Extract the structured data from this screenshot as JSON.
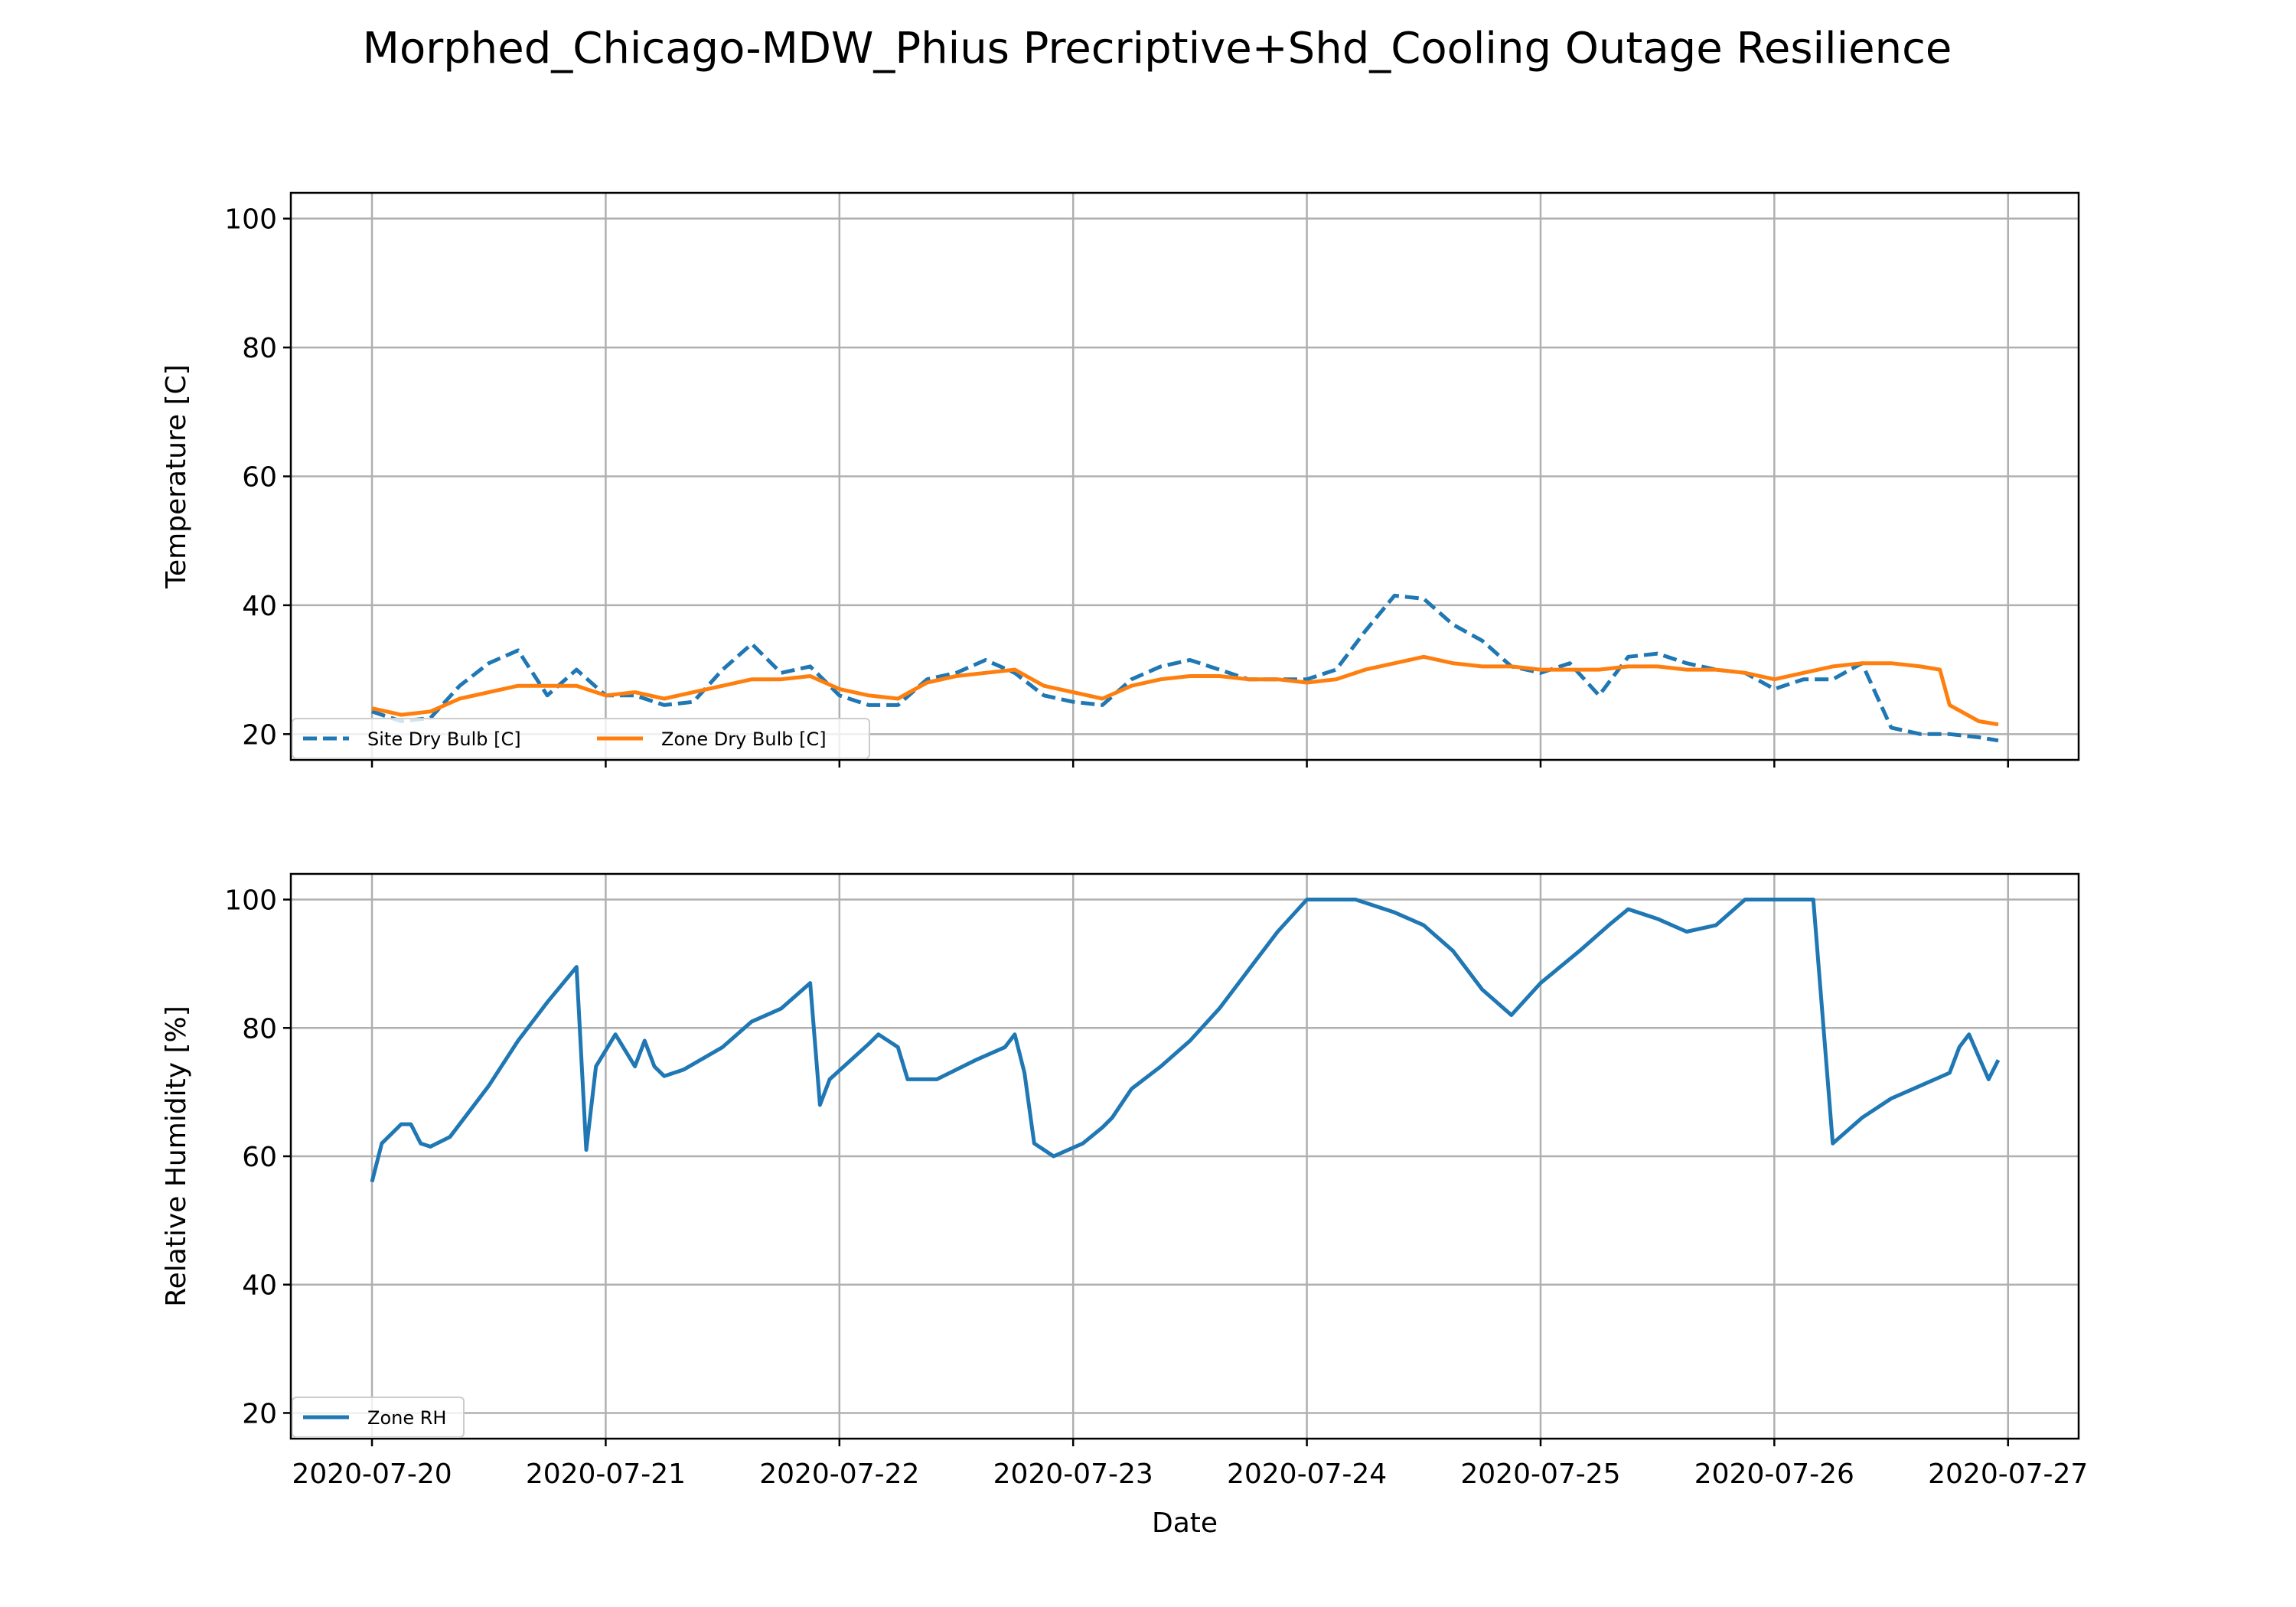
{
  "figure": {
    "title": "Morphed_Chicago-MDW_Phius Precriptive+Shd_Cooling Outage Resilience"
  },
  "chart_data": [
    {
      "type": "line",
      "title": "",
      "xlabel": "",
      "ylabel": "Temperature [C]",
      "ylim": [
        16,
        104
      ],
      "yticks": [
        20,
        40,
        60,
        80,
        100
      ],
      "xlim": [
        "2020-07-19T15:40",
        "2020-07-27T07:15"
      ],
      "xticks": [
        "2020-07-20",
        "2020-07-21",
        "2020-07-22",
        "2020-07-23",
        "2020-07-24",
        "2020-07-25",
        "2020-07-26",
        "2020-07-27"
      ],
      "tick_labels_visible": false,
      "grid": true,
      "legend": {
        "placement": "lower-left",
        "columns": 2
      },
      "series": [
        {
          "name": "Site Dry Bulb [C]",
          "color": "#1f77b4",
          "style": "dashed",
          "x": [
            "2020-07-20T00:00",
            "2020-07-20T03:00",
            "2020-07-20T06:00",
            "2020-07-20T09:00",
            "2020-07-20T12:00",
            "2020-07-20T15:00",
            "2020-07-20T18:00",
            "2020-07-20T21:00",
            "2020-07-21T00:00",
            "2020-07-21T03:00",
            "2020-07-21T06:00",
            "2020-07-21T09:00",
            "2020-07-21T12:00",
            "2020-07-21T15:00",
            "2020-07-21T18:00",
            "2020-07-21T21:00",
            "2020-07-22T00:00",
            "2020-07-22T03:00",
            "2020-07-22T06:00",
            "2020-07-22T09:00",
            "2020-07-22T12:00",
            "2020-07-22T15:00",
            "2020-07-22T18:00",
            "2020-07-22T21:00",
            "2020-07-23T00:00",
            "2020-07-23T03:00",
            "2020-07-23T06:00",
            "2020-07-23T09:00",
            "2020-07-23T12:00",
            "2020-07-23T15:00",
            "2020-07-23T18:00",
            "2020-07-23T21:00",
            "2020-07-24T00:00",
            "2020-07-24T03:00",
            "2020-07-24T06:00",
            "2020-07-24T09:00",
            "2020-07-24T12:00",
            "2020-07-24T15:00",
            "2020-07-24T18:00",
            "2020-07-24T21:00",
            "2020-07-25T00:00",
            "2020-07-25T03:00",
            "2020-07-25T06:00",
            "2020-07-25T09:00",
            "2020-07-25T12:00",
            "2020-07-25T15:00",
            "2020-07-25T18:00",
            "2020-07-25T21:00",
            "2020-07-26T00:00",
            "2020-07-26T03:00",
            "2020-07-26T06:00",
            "2020-07-26T09:00",
            "2020-07-26T12:00",
            "2020-07-26T15:00",
            "2020-07-26T18:00",
            "2020-07-26T21:00",
            "2020-07-26T23:00"
          ],
          "values": [
            23.5,
            22.0,
            22.5,
            27.5,
            31.0,
            33.0,
            26.0,
            30.0,
            26.0,
            26.0,
            24.5,
            25.0,
            30.0,
            34.0,
            29.5,
            30.5,
            26.0,
            24.5,
            24.5,
            28.5,
            29.5,
            31.5,
            29.5,
            26.0,
            25.0,
            24.5,
            28.5,
            30.5,
            31.5,
            30.0,
            28.5,
            28.5,
            28.5,
            30.0,
            36.0,
            41.5,
            41.0,
            37.0,
            34.5,
            30.5,
            29.5,
            31.0,
            26.0,
            32.0,
            32.5,
            31.0,
            30.0,
            29.5,
            27.0,
            28.5,
            28.5,
            31.0,
            21.0,
            20.0,
            20.0,
            19.5,
            19.0
          ]
        },
        {
          "name": "Zone Dry Bulb [C]",
          "color": "#ff7f0e",
          "style": "solid",
          "x": [
            "2020-07-20T00:00",
            "2020-07-20T03:00",
            "2020-07-20T06:00",
            "2020-07-20T09:00",
            "2020-07-20T12:00",
            "2020-07-20T15:00",
            "2020-07-20T18:00",
            "2020-07-20T21:00",
            "2020-07-21T00:00",
            "2020-07-21T03:00",
            "2020-07-21T06:00",
            "2020-07-21T09:00",
            "2020-07-21T12:00",
            "2020-07-21T15:00",
            "2020-07-21T18:00",
            "2020-07-21T21:00",
            "2020-07-22T00:00",
            "2020-07-22T03:00",
            "2020-07-22T06:00",
            "2020-07-22T09:00",
            "2020-07-22T12:00",
            "2020-07-22T15:00",
            "2020-07-22T18:00",
            "2020-07-22T21:00",
            "2020-07-23T00:00",
            "2020-07-23T03:00",
            "2020-07-23T06:00",
            "2020-07-23T09:00",
            "2020-07-23T12:00",
            "2020-07-23T15:00",
            "2020-07-23T18:00",
            "2020-07-23T21:00",
            "2020-07-24T00:00",
            "2020-07-24T03:00",
            "2020-07-24T06:00",
            "2020-07-24T09:00",
            "2020-07-24T12:00",
            "2020-07-24T15:00",
            "2020-07-24T18:00",
            "2020-07-24T21:00",
            "2020-07-25T00:00",
            "2020-07-25T03:00",
            "2020-07-25T06:00",
            "2020-07-25T09:00",
            "2020-07-25T12:00",
            "2020-07-25T15:00",
            "2020-07-25T18:00",
            "2020-07-25T21:00",
            "2020-07-26T00:00",
            "2020-07-26T03:00",
            "2020-07-26T06:00",
            "2020-07-26T09:00",
            "2020-07-26T12:00",
            "2020-07-26T15:00",
            "2020-07-26T17:00",
            "2020-07-26T18:00",
            "2020-07-26T21:00",
            "2020-07-26T23:00"
          ],
          "values": [
            24.0,
            23.0,
            23.5,
            25.5,
            26.5,
            27.5,
            27.5,
            27.5,
            26.0,
            26.5,
            25.5,
            26.5,
            27.5,
            28.5,
            28.5,
            29.0,
            27.0,
            26.0,
            25.5,
            28.0,
            29.0,
            29.5,
            30.0,
            27.5,
            26.5,
            25.5,
            27.5,
            28.5,
            29.0,
            29.0,
            28.5,
            28.5,
            28.0,
            28.5,
            30.0,
            31.0,
            32.0,
            31.0,
            30.5,
            30.5,
            30.0,
            30.0,
            30.0,
            30.5,
            30.5,
            30.0,
            30.0,
            29.5,
            28.5,
            29.5,
            30.5,
            31.0,
            31.0,
            30.5,
            30.0,
            24.5,
            22.0,
            21.5
          ]
        }
      ]
    },
    {
      "type": "line",
      "title": "",
      "xlabel": "Date",
      "ylabel": "Relative Humidity [%]",
      "ylim": [
        16,
        104
      ],
      "yticks": [
        20,
        40,
        60,
        80,
        100
      ],
      "xlim": [
        "2020-07-19T15:40",
        "2020-07-27T07:15"
      ],
      "xticks": [
        "2020-07-20",
        "2020-07-21",
        "2020-07-22",
        "2020-07-23",
        "2020-07-24",
        "2020-07-25",
        "2020-07-26",
        "2020-07-27"
      ],
      "tick_labels_visible": true,
      "grid": true,
      "legend": {
        "placement": "lower-left",
        "columns": 1
      },
      "series": [
        {
          "name": "Zone RH",
          "color": "#1f77b4",
          "style": "solid",
          "x": [
            "2020-07-20T00:00",
            "2020-07-20T01:00",
            "2020-07-20T03:00",
            "2020-07-20T04:00",
            "2020-07-20T05:00",
            "2020-07-20T06:00",
            "2020-07-20T08:00",
            "2020-07-20T10:00",
            "2020-07-20T12:00",
            "2020-07-20T15:00",
            "2020-07-20T18:00",
            "2020-07-20T21:00",
            "2020-07-20T22:00",
            "2020-07-20T23:00",
            "2020-07-21T01:00",
            "2020-07-21T03:00",
            "2020-07-21T04:00",
            "2020-07-21T05:00",
            "2020-07-21T06:00",
            "2020-07-21T08:00",
            "2020-07-21T12:00",
            "2020-07-21T15:00",
            "2020-07-21T18:00",
            "2020-07-21T21:00",
            "2020-07-21T22:00",
            "2020-07-21T23:00",
            "2020-07-22T03:00",
            "2020-07-22T04:00",
            "2020-07-22T06:00",
            "2020-07-22T07:00",
            "2020-07-22T10:00",
            "2020-07-22T14:00",
            "2020-07-22T17:00",
            "2020-07-22T18:00",
            "2020-07-22T19:00",
            "2020-07-22T20:00",
            "2020-07-22T22:00",
            "2020-07-23T01:00",
            "2020-07-23T03:00",
            "2020-07-23T04:00",
            "2020-07-23T06:00",
            "2020-07-23T09:00",
            "2020-07-23T12:00",
            "2020-07-23T15:00",
            "2020-07-23T18:00",
            "2020-07-23T21:00",
            "2020-07-24T00:00",
            "2020-07-24T05:00",
            "2020-07-24T09:00",
            "2020-07-24T12:00",
            "2020-07-24T15:00",
            "2020-07-24T18:00",
            "2020-07-24T21:00",
            "2020-07-25T00:00",
            "2020-07-25T04:00",
            "2020-07-25T07:00",
            "2020-07-25T09:00",
            "2020-07-25T12:00",
            "2020-07-25T15:00",
            "2020-07-25T18:00",
            "2020-07-25T21:00",
            "2020-07-26T02:00",
            "2020-07-26T04:00",
            "2020-07-26T06:00",
            "2020-07-26T09:00",
            "2020-07-26T12:00",
            "2020-07-26T15:00",
            "2020-07-26T18:00",
            "2020-07-26T19:00",
            "2020-07-26T20:00",
            "2020-07-26T22:00",
            "2020-07-26T23:00"
          ],
          "values": [
            56,
            62,
            65,
            65,
            62,
            61.5,
            63,
            67,
            71,
            78,
            84,
            89.5,
            61,
            74,
            79,
            74,
            78,
            74,
            72.5,
            73.5,
            77,
            81,
            83,
            87,
            68,
            72,
            77.5,
            79,
            77,
            72,
            72,
            75,
            77,
            79,
            73,
            62,
            60,
            62,
            64.5,
            66,
            70.5,
            74,
            78,
            83,
            89,
            95,
            100,
            100,
            98,
            96,
            92,
            86,
            82,
            87,
            92,
            96,
            98.5,
            97,
            95,
            96,
            100,
            100,
            100,
            62,
            66,
            69,
            71,
            73,
            77,
            79,
            72,
            75
          ]
        }
      ]
    }
  ]
}
